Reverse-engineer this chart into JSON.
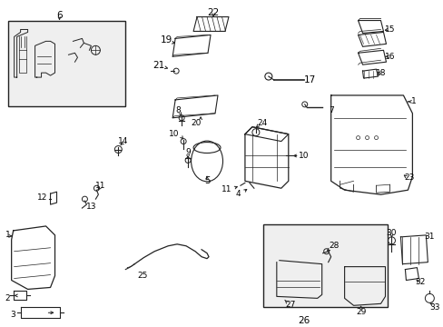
{
  "bg": "#ffffff",
  "lc": "#222222",
  "tc": "#000000",
  "fs": 6.5,
  "fw": 4.89,
  "fh": 3.6,
  "dpi": 100
}
